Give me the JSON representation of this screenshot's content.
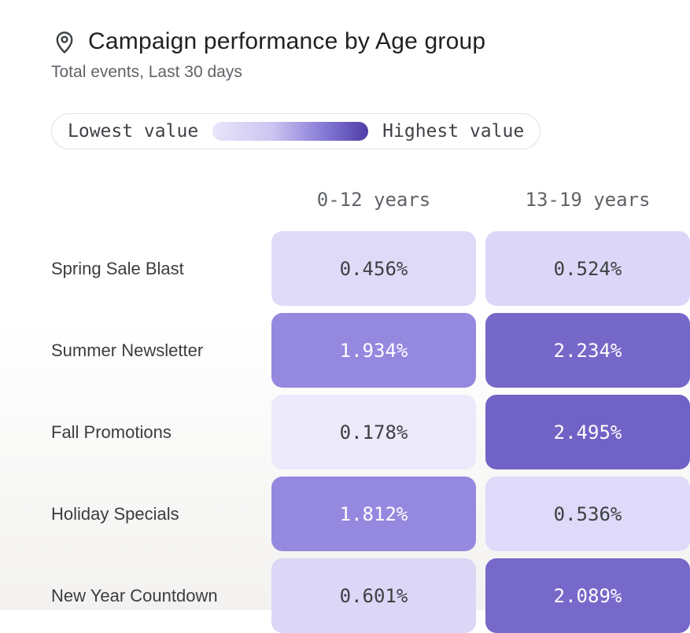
{
  "header": {
    "title": "Campaign performance by Age group",
    "subtitle": "Total events, Last 30 days",
    "icon": "location-pin-icon"
  },
  "legend": {
    "low_label": "Lowest value",
    "high_label": "Highest value",
    "gradient_start": "#E9E5FA",
    "gradient_end": "#4E3EA6"
  },
  "chart_data": {
    "type": "heatmap",
    "title": "Campaign performance by Age group",
    "subtitle": "Total events, Last 30 days",
    "columns": [
      "0-12 years",
      "13-19 years"
    ],
    "rows": [
      "Spring Sale Blast",
      "Summer Newsletter",
      "Fall Promotions",
      "Holiday Specials",
      "New Year Countdown"
    ],
    "values": [
      [
        0.456,
        0.524
      ],
      [
        1.934,
        2.234
      ],
      [
        0.178,
        2.495
      ],
      [
        1.812,
        0.536
      ],
      [
        0.601,
        2.089
      ]
    ],
    "display": [
      [
        "0.456%",
        "0.524%"
      ],
      [
        "1.934%",
        "2.234%"
      ],
      [
        "0.178%",
        "2.495%"
      ],
      [
        "1.812%",
        "0.536%"
      ],
      [
        "0.601%",
        "2.089%"
      ]
    ],
    "cell_colors": [
      [
        "#DFDAF8",
        "#DCD7F8"
      ],
      [
        "#9488DF",
        "#7668C8"
      ],
      [
        "#ECE9FB",
        "#7163C5"
      ],
      [
        "#9589DF",
        "#DFDAF9"
      ],
      [
        "#DCD6F7",
        "#7769C9"
      ]
    ],
    "text_colors": [
      [
        "#3C4043",
        "#3C4043"
      ],
      [
        "#FFFFFF",
        "#FFFFFF"
      ],
      [
        "#3C4043",
        "#FFFFFF"
      ],
      [
        "#FFFFFF",
        "#3C4043"
      ],
      [
        "#3C4043",
        "#FFFFFF"
      ]
    ],
    "value_suffix": "%",
    "legend_position": "top",
    "grid": false
  }
}
